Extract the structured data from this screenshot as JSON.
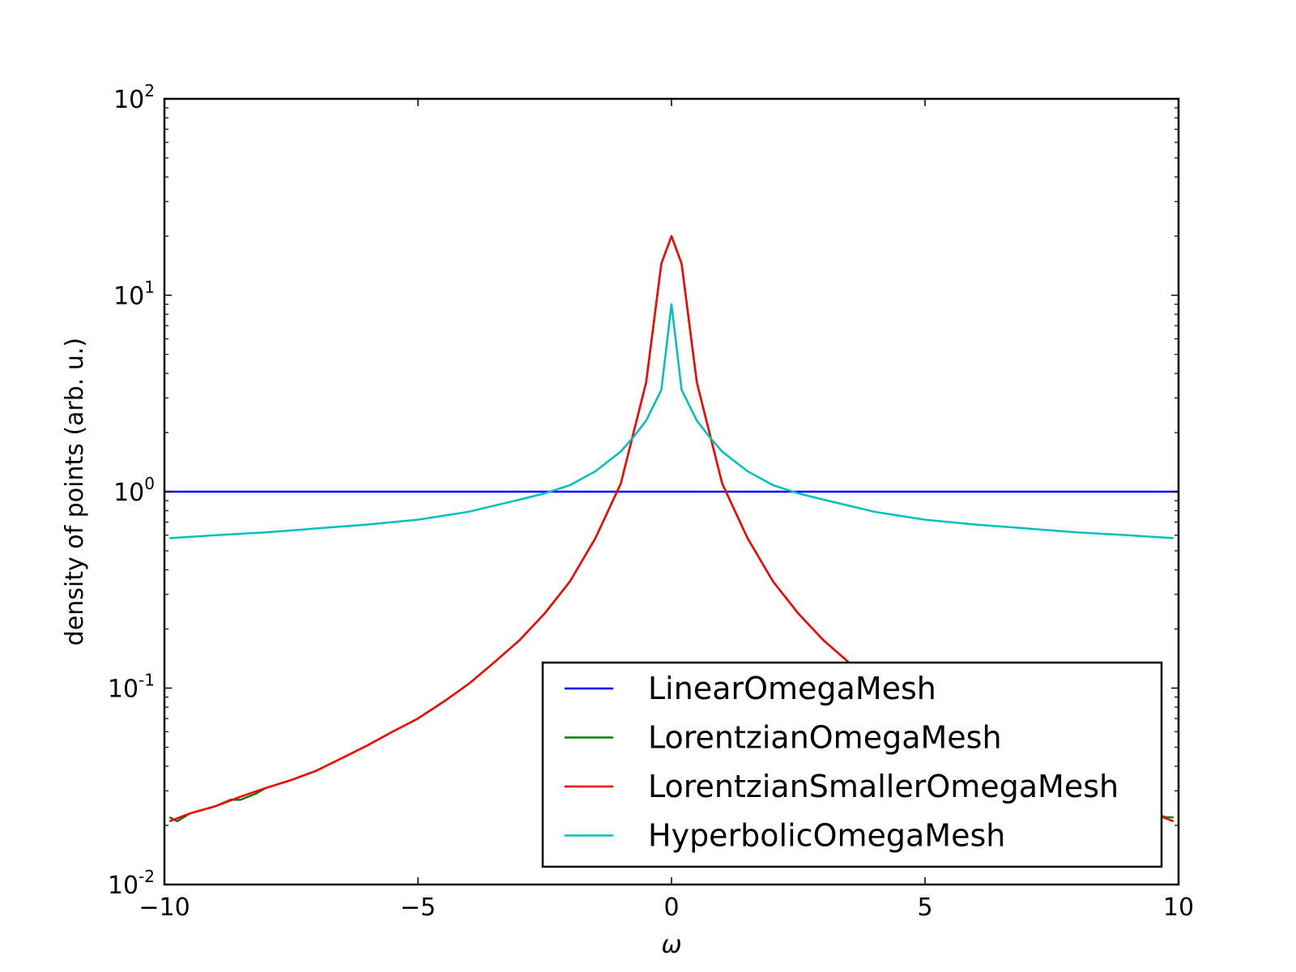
{
  "chart_data": {
    "type": "line",
    "title": "",
    "xlabel": "ω",
    "ylabel": "density of points (arb. u.)",
    "xscale": "linear",
    "yscale": "log",
    "xlim": [
      -10,
      10
    ],
    "ylim": [
      0.01,
      100
    ],
    "grid": false,
    "legend_position": "lower-right",
    "x_ticks": [
      {
        "value": -10,
        "label": "−10"
      },
      {
        "value": -5,
        "label": "−5"
      },
      {
        "value": 0,
        "label": "0"
      },
      {
        "value": 5,
        "label": "5"
      },
      {
        "value": 10,
        "label": "10"
      }
    ],
    "y_ticks": [
      {
        "value": 0.01,
        "base": "10",
        "exp": "-2"
      },
      {
        "value": 0.1,
        "base": "10",
        "exp": "-1"
      },
      {
        "value": 1,
        "base": "10",
        "exp": "0"
      },
      {
        "value": 10,
        "base": "10",
        "exp": "1"
      },
      {
        "value": 100,
        "base": "10",
        "exp": "2"
      }
    ],
    "series": [
      {
        "name": "LinearOmegaMesh",
        "color": "#0000ff",
        "x": [
          -10,
          -5,
          0,
          5,
          10
        ],
        "y": [
          1,
          1,
          1,
          1,
          1
        ]
      },
      {
        "name": "LorentzianOmegaMesh",
        "color": "#008000",
        "x": [
          -9.9,
          -9.75,
          -9.5,
          -9.0,
          -8.7,
          -8.5,
          -8.2,
          -8.0,
          -7.5,
          -7.0,
          -6.5,
          -6.0,
          -5.5,
          -5.0,
          -4.5,
          -4.0,
          -3.5,
          -3.0,
          -2.5,
          -2.0,
          -1.5,
          -1.0,
          -0.5,
          -0.2,
          0.0,
          0.2,
          0.5,
          1.0,
          1.5,
          2.0,
          2.5,
          3.0,
          3.5,
          4.0,
          4.5,
          5.0,
          5.5,
          6.0,
          6.5,
          7.0,
          7.5,
          8.0,
          8.5,
          9.0,
          9.5,
          9.75,
          9.9
        ],
        "y": [
          0.022,
          0.021,
          0.023,
          0.025,
          0.027,
          0.027,
          0.029,
          0.031,
          0.034,
          0.038,
          0.044,
          0.051,
          0.06,
          0.07,
          0.085,
          0.105,
          0.135,
          0.175,
          0.24,
          0.35,
          0.58,
          1.1,
          3.6,
          14.5,
          20,
          14.5,
          3.6,
          1.1,
          0.58,
          0.35,
          0.24,
          0.175,
          0.135,
          0.105,
          0.085,
          0.07,
          0.06,
          0.051,
          0.044,
          0.038,
          0.034,
          0.031,
          0.029,
          0.026,
          0.023,
          0.022,
          0.022
        ]
      },
      {
        "name": "LorentzianSmallerOmegaMesh",
        "color": "#ff0000",
        "x": [
          -9.9,
          -9.5,
          -9.0,
          -8.5,
          -8.0,
          -7.5,
          -7.0,
          -6.5,
          -6.0,
          -5.5,
          -5.0,
          -4.5,
          -4.0,
          -3.5,
          -3.0,
          -2.5,
          -2.0,
          -1.5,
          -1.0,
          -0.5,
          -0.2,
          0.0,
          0.2,
          0.5,
          1.0,
          1.5,
          2.0,
          2.5,
          3.0,
          3.5,
          4.0,
          4.5,
          5.0,
          5.5,
          6.0,
          6.5,
          7.0,
          7.5,
          8.0,
          8.5,
          9.0,
          9.5,
          9.9
        ],
        "y": [
          0.021,
          0.023,
          0.025,
          0.028,
          0.031,
          0.034,
          0.038,
          0.044,
          0.051,
          0.06,
          0.07,
          0.085,
          0.105,
          0.135,
          0.175,
          0.24,
          0.35,
          0.58,
          1.1,
          3.6,
          14.5,
          20,
          14.5,
          3.6,
          1.1,
          0.58,
          0.35,
          0.24,
          0.175,
          0.135,
          0.105,
          0.085,
          0.07,
          0.06,
          0.051,
          0.044,
          0.038,
          0.034,
          0.031,
          0.028,
          0.025,
          0.023,
          0.021
        ]
      },
      {
        "name": "HyperbolicOmegaMesh",
        "color": "#00bfbf",
        "x": [
          -9.9,
          -9.0,
          -8.0,
          -7.0,
          -6.0,
          -5.0,
          -4.0,
          -3.0,
          -2.5,
          -2.0,
          -1.5,
          -1.0,
          -0.75,
          -0.5,
          -0.2,
          0.0,
          0.2,
          0.5,
          0.75,
          1.0,
          1.5,
          2.0,
          2.5,
          3.0,
          4.0,
          5.0,
          6.0,
          7.0,
          8.0,
          9.0,
          9.9
        ],
        "y": [
          0.58,
          0.6,
          0.62,
          0.65,
          0.68,
          0.72,
          0.79,
          0.91,
          0.98,
          1.08,
          1.27,
          1.6,
          1.9,
          2.3,
          3.3,
          9.0,
          3.3,
          2.3,
          1.9,
          1.6,
          1.27,
          1.08,
          0.98,
          0.91,
          0.79,
          0.72,
          0.68,
          0.65,
          0.62,
          0.6,
          0.58
        ]
      }
    ]
  }
}
